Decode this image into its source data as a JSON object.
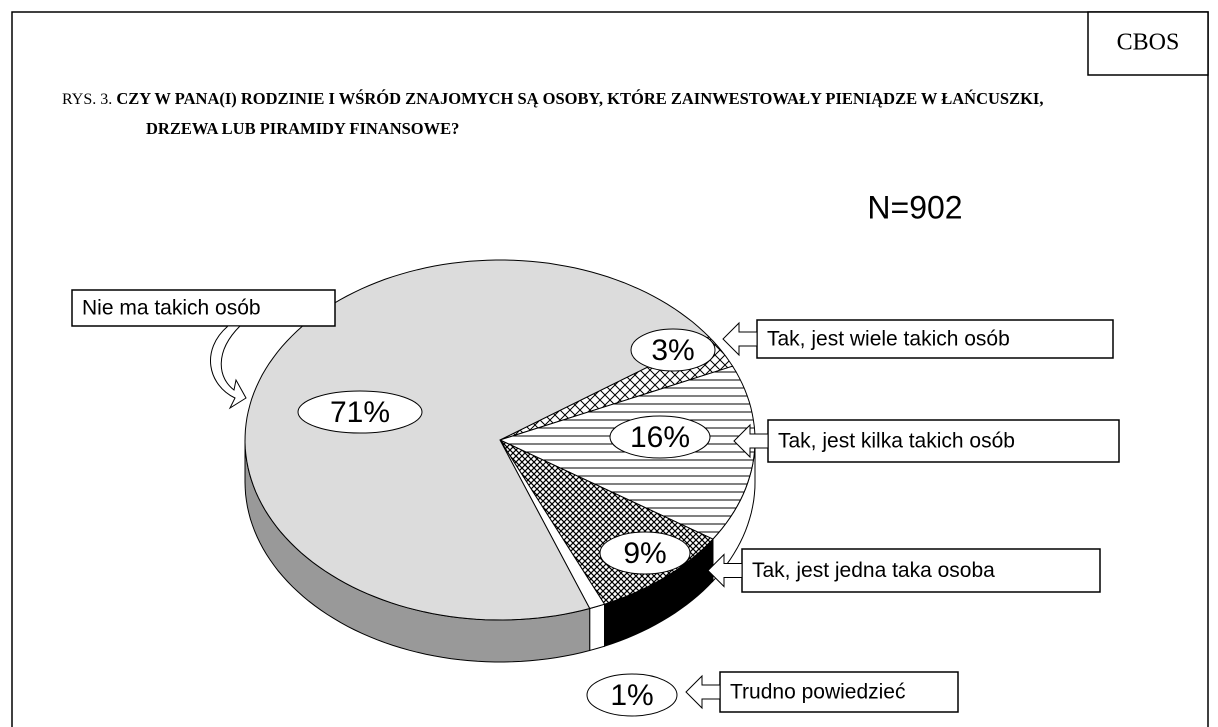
{
  "chart_data": {
    "type": "pie",
    "source": "CBOS",
    "figure_label": "RYS. 3.",
    "title": "CZY W PANA(I) RODZINIE I WŚRÓD ZNAJOMYCH SĄ OSOBY, KTÓRE ZAINWESTOWAŁY PIENIĄDZE W ŁAŃCUSZKI, DRZEWA LUB PIRAMIDY FINANSOWE?",
    "annotation": "N=902",
    "categories": [
      "Nie ma takich osób",
      "Tak, jest wiele takich osób",
      "Tak, jest kilka takich osób",
      "Tak, jest jedna taka osoba",
      "Trudno powiedzieć"
    ],
    "values": [
      71,
      3,
      16,
      9,
      1
    ],
    "value_labels": [
      "71%",
      "3%",
      "16%",
      "9%",
      "1%"
    ],
    "colors": [
      "#dcdcdc",
      "#ffffff",
      "#ffffff",
      "#ffffff",
      "#ffffff"
    ],
    "patterns": [
      "none",
      "crosshatch",
      "horizontal",
      "crosshatch-dense",
      "none"
    ]
  }
}
